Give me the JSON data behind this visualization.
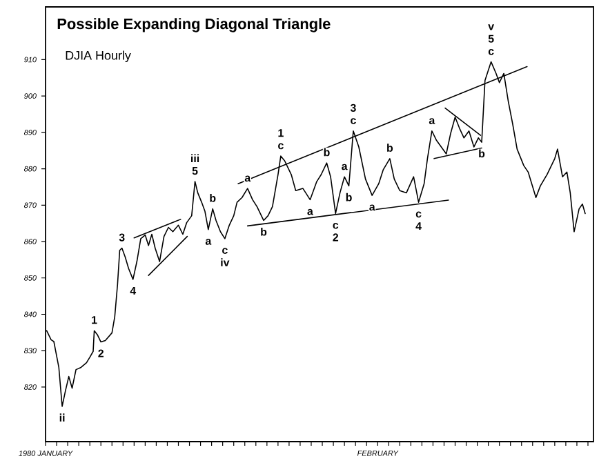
{
  "chart_data": {
    "type": "line",
    "title": "Possible Expanding Diagonal Triangle",
    "subtitle": "DJIA Hourly",
    "xlim": [
      "1980-01-02T00:00",
      "1980-02-20T12:00"
    ],
    "ylim": [
      805,
      924.5
    ],
    "xticks": [
      {
        "value": "1980-01-02",
        "label": "1980 JANUARY"
      },
      {
        "value": "1980-01-03",
        "label": null
      },
      {
        "value": "1980-01-04",
        "label": null
      },
      {
        "value": "1980-01-05",
        "label": null
      },
      {
        "value": "1980-01-06",
        "label": null
      },
      {
        "value": "1980-01-07",
        "label": null
      },
      {
        "value": "1980-01-08",
        "label": null
      },
      {
        "value": "1980-01-09",
        "label": null
      },
      {
        "value": "1980-01-10",
        "label": null
      },
      {
        "value": "1980-01-11",
        "label": null
      },
      {
        "value": "1980-01-12",
        "label": null
      },
      {
        "value": "1980-01-13",
        "label": null
      },
      {
        "value": "1980-01-14",
        "label": null
      },
      {
        "value": "1980-01-15",
        "label": null
      },
      {
        "value": "1980-01-16",
        "label": null
      },
      {
        "value": "1980-01-17",
        "label": null
      },
      {
        "value": "1980-01-18",
        "label": null
      },
      {
        "value": "1980-01-19",
        "label": null
      },
      {
        "value": "1980-01-20",
        "label": null
      },
      {
        "value": "1980-01-21",
        "label": null
      },
      {
        "value": "1980-01-22",
        "label": null
      },
      {
        "value": "1980-01-23",
        "label": null
      },
      {
        "value": "1980-01-24",
        "label": null
      },
      {
        "value": "1980-01-25",
        "label": null
      },
      {
        "value": "1980-01-26",
        "label": null
      },
      {
        "value": "1980-01-27",
        "label": null
      },
      {
        "value": "1980-01-28",
        "label": null
      },
      {
        "value": "1980-01-29",
        "label": null
      },
      {
        "value": "1980-01-30",
        "label": null
      },
      {
        "value": "1980-01-31",
        "label": null
      },
      {
        "value": "1980-02-01",
        "label": "FEBRUARY"
      },
      {
        "value": "1980-02-02",
        "label": null
      },
      {
        "value": "1980-02-03",
        "label": null
      },
      {
        "value": "1980-02-04",
        "label": null
      },
      {
        "value": "1980-02-05",
        "label": null
      },
      {
        "value": "1980-02-06",
        "label": null
      },
      {
        "value": "1980-02-07",
        "label": null
      },
      {
        "value": "1980-02-08",
        "label": null
      },
      {
        "value": "1980-02-09",
        "label": null
      },
      {
        "value": "1980-02-10",
        "label": null
      },
      {
        "value": "1980-02-11",
        "label": null
      },
      {
        "value": "1980-02-12",
        "label": null
      },
      {
        "value": "1980-02-13",
        "label": null
      },
      {
        "value": "1980-02-14",
        "label": null
      },
      {
        "value": "1980-02-15",
        "label": null
      },
      {
        "value": "1980-02-16",
        "label": null
      },
      {
        "value": "1980-02-17",
        "label": null
      },
      {
        "value": "1980-02-18",
        "label": null
      },
      {
        "value": "1980-02-19",
        "label": null
      },
      {
        "value": "1980-02-20",
        "label": null
      }
    ],
    "yticks": [
      820,
      830,
      840,
      850,
      860,
      870,
      880,
      890,
      900,
      910
    ],
    "grid": false,
    "marker": "none",
    "line_style": "solid",
    "series": [
      {
        "color": "#000000",
        "x": [
          "1980-01-02T02:24",
          "1980-01-02T12:00",
          "1980-01-02T18:00",
          "1980-01-03T04:48",
          "1980-01-03T12:00",
          "1980-01-03T19:12",
          "1980-01-04T02:24",
          "1980-01-04T09:36",
          "1980-01-04T18:00",
          "1980-01-05T04:48",
          "1980-01-05T16:48",
          "1980-01-06T00:00",
          "1980-01-06T07:12",
          "1980-01-06T09:36",
          "1980-01-06T16:48",
          "1980-01-07T00:00",
          "1980-01-07T09:36",
          "1980-01-08T00:00",
          "1980-01-08T06:00",
          "1980-01-08T12:00",
          "1980-01-08T16:48",
          "1980-01-08T21:36",
          "1980-01-09T04:48",
          "1980-01-09T12:00",
          "1980-01-09T21:36",
          "1980-01-10T06:00",
          "1980-01-10T14:24",
          "1980-01-11T00:00",
          "1980-01-11T07:12",
          "1980-01-11T14:24",
          "1980-01-11T21:36",
          "1980-01-12T07:12",
          "1980-01-12T16:48",
          "1980-01-13T02:24",
          "1980-01-13T12:00",
          "1980-01-14T00:00",
          "1980-01-14T09:36",
          "1980-01-14T18:00",
          "1980-01-15T04:48",
          "1980-01-15T12:00",
          "1980-01-15T18:00",
          "1980-01-16T02:24",
          "1980-01-16T09:36",
          "1980-01-16T16:48",
          "1980-01-17T02:24",
          "1980-01-17T09:36",
          "1980-01-17T19:12",
          "1980-01-18T04:48",
          "1980-01-18T14:24",
          "1980-01-19T00:00",
          "1980-01-19T07:12",
          "1980-01-19T18:00",
          "1980-01-20T06:00",
          "1980-01-20T16:48",
          "1980-01-21T02:24",
          "1980-01-21T16:48",
          "1980-01-22T02:24",
          "1980-01-22T12:00",
          "1980-01-23T00:00",
          "1980-01-23T06:00",
          "1980-01-23T14:24",
          "1980-01-24T04:48",
          "1980-01-24T14:24",
          "1980-01-25T06:00",
          "1980-01-25T21:36",
          "1980-01-26T12:00",
          "1980-01-26T21:36",
          "1980-01-27T09:36",
          "1980-01-27T18:00",
          "1980-01-28T04:48",
          "1980-01-28T14:24",
          "1980-01-29T00:00",
          "1980-01-29T09:36",
          "1980-01-29T19:12",
          "1980-01-30T07:12",
          "1980-01-30T21:36",
          "1980-01-31T12:00",
          "1980-02-01T02:24",
          "1980-02-01T12:00",
          "1980-02-02T02:24",
          "1980-02-02T12:00",
          "1980-02-03T00:00",
          "1980-02-03T14:24",
          "1980-02-04T06:00",
          "1980-02-04T16:48",
          "1980-02-05T04:48",
          "1980-02-05T12:00",
          "1980-02-05T21:36",
          "1980-02-06T07:12",
          "1980-02-06T18:00",
          "1980-02-07T04:48",
          "1980-02-07T14:24",
          "1980-02-08T00:00",
          "1980-02-08T09:36",
          "1980-02-08T19:12",
          "1980-02-09T06:00",
          "1980-02-09T16:48",
          "1980-02-10T02:24",
          "1980-02-10T09:36",
          "1980-02-10T16:48",
          "1980-02-11T06:00",
          "1980-02-11T16:48",
          "1980-02-12T00:00",
          "1980-02-12T09:36",
          "1980-02-12T19:12",
          "1980-02-13T04:48",
          "1980-02-13T14:24",
          "1980-02-14T04:48",
          "1980-02-14T14:24",
          "1980-02-15T07:12",
          "1980-02-15T16:48",
          "1980-02-16T07:12",
          "1980-02-17T00:00",
          "1980-02-17T06:00",
          "1980-02-17T16:48",
          "1980-02-18T02:24",
          "1980-02-18T09:36",
          "1980-02-18T18:00",
          "1980-02-19T04:48",
          "1980-02-19T12:00",
          "1980-02-19T18:00"
        ],
        "values": [
          835.5,
          833,
          832.5,
          825.4,
          814.7,
          819,
          822.9,
          819.7,
          824.8,
          825.4,
          826.7,
          828.2,
          829.8,
          835.5,
          834.3,
          832.4,
          832.8,
          834.9,
          839.3,
          848.1,
          857.6,
          858.2,
          855.7,
          852.6,
          849.6,
          854.5,
          860.8,
          861.8,
          858.9,
          862,
          858.2,
          854.5,
          861.4,
          863.9,
          862.7,
          864.5,
          862,
          865.2,
          867.1,
          876.5,
          873.4,
          870.8,
          868.3,
          863.3,
          869,
          865.8,
          862.7,
          860.8,
          864.5,
          867.1,
          870.8,
          872.1,
          874.6,
          871.5,
          869.6,
          865.8,
          867.1,
          869.6,
          878.4,
          883.5,
          882.2,
          878.4,
          874,
          874.6,
          871.5,
          876.5,
          878.4,
          881.6,
          877.8,
          867.7,
          873.4,
          877.8,
          875.3,
          890.4,
          886,
          877.2,
          872.7,
          875.9,
          879.7,
          882.8,
          877.2,
          874,
          873.4,
          877.8,
          870.8,
          875.9,
          882.8,
          890.4,
          887.9,
          886,
          884.1,
          889.8,
          894.2,
          891.1,
          888.5,
          890.4,
          886,
          888.5,
          887.3,
          904.3,
          909.4,
          906.2,
          903.7,
          906.2,
          898.6,
          892.3,
          885.4,
          880.9,
          879.1,
          872.1,
          875.3,
          878.4,
          882.8,
          885.4,
          877.8,
          879.1,
          873.4,
          862.7,
          869,
          870.3,
          867.7
        ]
      },
      {
        "type": "line",
        "color": "#000000",
        "x": [
          "1980-01-19T09:36",
          "1980-02-14T12:00"
        ],
        "values": [
          875.9,
          908.1
        ]
      },
      {
        "type": "line",
        "color": "#000000",
        "x": [
          "1980-01-20T06:00",
          "1980-02-07T09:36"
        ],
        "values": [
          864.3,
          871.4
        ]
      },
      {
        "type": "line",
        "color": "#000000",
        "x": [
          "1980-01-10T00:00",
          "1980-01-14T04:48"
        ],
        "values": [
          861,
          866.1
        ]
      },
      {
        "type": "line",
        "color": "#000000",
        "x": [
          "1980-01-11T07:12",
          "1980-01-14T19:12"
        ],
        "values": [
          850.7,
          861.4
        ]
      },
      {
        "type": "line",
        "color": "#000000",
        "x": [
          "1980-02-07T02:24",
          "1980-02-10T07:12"
        ],
        "values": [
          896.7,
          889.2
        ]
      },
      {
        "type": "line",
        "color": "#000000",
        "x": [
          "1980-02-06T02:24",
          "1980-02-10T09:36"
        ],
        "values": [
          882.8,
          885.7
        ]
      }
    ],
    "annotations": [
      {
        "text": "ii",
        "x": "1980-01-03T12:00",
        "y": 814.7
      },
      {
        "text": "1",
        "x": "1980-01-06T09:36",
        "y": 835.5
      },
      {
        "text": "2",
        "x": "1980-01-07T00:00",
        "y": 832.4
      },
      {
        "text": "3",
        "x": "1980-01-08T21:36",
        "y": 858.2
      },
      {
        "text": "4",
        "x": "1980-01-09T21:36",
        "y": 849.6
      },
      {
        "text": "5",
        "x": "1980-01-15T12:00",
        "y": 876.5
      },
      {
        "text": "iii",
        "x": "1980-01-15T12:00",
        "y": 876.5
      },
      {
        "text": "a",
        "x": "1980-01-16T16:48",
        "y": 863.3
      },
      {
        "text": "b",
        "x": "1980-01-17T02:24",
        "y": 869
      },
      {
        "text": "c",
        "x": "1980-01-18T04:48",
        "y": 860.8
      },
      {
        "text": "iv",
        "x": "1980-01-18T04:48",
        "y": 860.8
      },
      {
        "text": "a",
        "x": "1980-01-20T06:00",
        "y": 874.6
      },
      {
        "text": "b",
        "x": "1980-01-21T16:48",
        "y": 865.8
      },
      {
        "text": "c",
        "x": "1980-01-23T06:00",
        "y": 883.5
      },
      {
        "text": "1",
        "x": "1980-01-23T06:00",
        "y": 883.5
      },
      {
        "text": "a",
        "x": "1980-01-25T21:36",
        "y": 871.5
      },
      {
        "text": "b",
        "x": "1980-01-27T09:36",
        "y": 881.6
      },
      {
        "text": "c",
        "x": "1980-01-28T04:48",
        "y": 867.7
      },
      {
        "text": "2",
        "x": "1980-01-28T04:48",
        "y": 867.7
      },
      {
        "text": "a",
        "x": "1980-01-29T00:00",
        "y": 877.8
      },
      {
        "text": "b",
        "x": "1980-01-29T09:36",
        "y": 875.3
      },
      {
        "text": "c",
        "x": "1980-01-29T19:12",
        "y": 890.4
      },
      {
        "text": "3",
        "x": "1980-01-29T19:12",
        "y": 890.4
      },
      {
        "text": "a",
        "x": "1980-01-31T12:00",
        "y": 872.7
      },
      {
        "text": "b",
        "x": "1980-02-02T02:24",
        "y": 882.8
      },
      {
        "text": "c",
        "x": "1980-02-04T16:48",
        "y": 870.8
      },
      {
        "text": "4",
        "x": "1980-02-04T16:48",
        "y": 870.8
      },
      {
        "text": "a",
        "x": "1980-02-05T21:36",
        "y": 890.4
      },
      {
        "text": "b",
        "x": "1980-02-10T09:36",
        "y": 887.3
      },
      {
        "text": "c",
        "x": "1980-02-11T06:00",
        "y": 909.4
      },
      {
        "text": "5",
        "x": "1980-02-11T06:00",
        "y": 909.4
      },
      {
        "text": "v",
        "x": "1980-02-11T06:00",
        "y": 909.4
      }
    ]
  }
}
